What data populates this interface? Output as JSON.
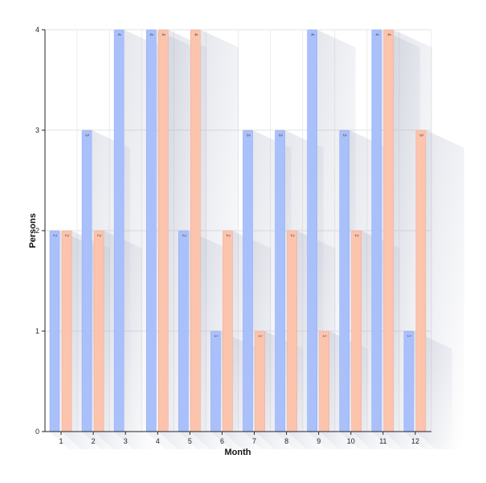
{
  "chart_data": {
    "type": "bar",
    "title": "",
    "xlabel": "Month",
    "ylabel": "Persons",
    "categories": [
      "1",
      "2",
      "3",
      "4",
      "5",
      "6",
      "7",
      "8",
      "9",
      "10",
      "11",
      "12"
    ],
    "series": [
      {
        "values": [
          2,
          3,
          4,
          4,
          2,
          1,
          3,
          3,
          4,
          3,
          4,
          1
        ],
        "color": "#a9c0fb"
      },
      {
        "values": [
          2,
          2,
          0,
          4,
          4,
          2,
          1,
          2,
          1,
          2,
          4,
          3
        ],
        "color": "#fcc3ad"
      }
    ],
    "ylim": [
      0,
      4
    ],
    "yticks": [
      "0",
      "1",
      "2",
      "3",
      "4"
    ],
    "grid": true,
    "data_labels": true,
    "legend": "none"
  }
}
